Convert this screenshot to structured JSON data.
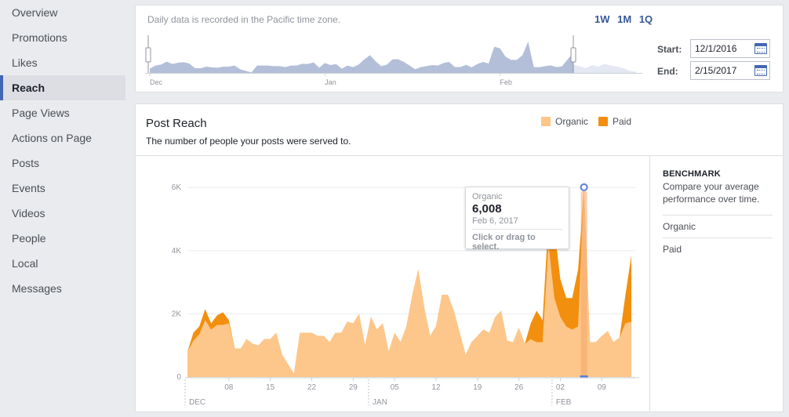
{
  "sidebar": {
    "items": [
      {
        "label": "Overview"
      },
      {
        "label": "Promotions"
      },
      {
        "label": "Likes"
      },
      {
        "label": "Reach",
        "active": true
      },
      {
        "label": "Page Views"
      },
      {
        "label": "Actions on Page"
      },
      {
        "label": "Posts"
      },
      {
        "label": "Events"
      },
      {
        "label": "Videos"
      },
      {
        "label": "People"
      },
      {
        "label": "Local"
      },
      {
        "label": "Messages"
      }
    ]
  },
  "range": {
    "note": "Daily data is recorded in the Pacific time zone.",
    "periods": [
      "1W",
      "1M",
      "1Q"
    ],
    "start_label": "Start:",
    "start_value": "12/1/2016",
    "end_label": "End:",
    "end_value": "2/15/2017",
    "month_labels": [
      "Dec",
      "Jan",
      "Feb"
    ]
  },
  "reach": {
    "title": "Post Reach",
    "subtitle": "The number of people your posts were served to."
  },
  "legend": {
    "organic": "Organic",
    "paid": "Paid"
  },
  "tooltip": {
    "series": "Organic",
    "value": "6,008",
    "date": "Feb 6, 2017",
    "hint": "Click or drag to select."
  },
  "benchmark": {
    "title": "BENCHMARK",
    "description": "Compare your average performance over time.",
    "items": [
      "Organic",
      "Paid"
    ]
  },
  "colors": {
    "organic": "#fdc68a",
    "paid": "#f28f0f",
    "accent": "#4267b2",
    "mini_fill": "#b3bfd8",
    "mini_future": "#e3e8f3"
  },
  "chart_data": {
    "type": "area",
    "title": "Post Reach",
    "stacked": true,
    "x_start_date": "2016-12-01",
    "ylim": [
      0,
      6600
    ],
    "yticks": [
      0,
      2000,
      4000,
      6000
    ],
    "ytick_labels": [
      "0",
      "2K",
      "4K",
      "6K"
    ],
    "xtick_labels": [
      "08",
      "15",
      "22",
      "29",
      "05",
      "12",
      "19",
      "26",
      "02",
      "09"
    ],
    "xtick_day_index": [
      7,
      14,
      21,
      28,
      35,
      42,
      49,
      56,
      63,
      70
    ],
    "month_labels": [
      "DEC",
      "JAN",
      "FEB"
    ],
    "month_day_index": [
      0,
      31,
      62
    ],
    "highlight_day_index": 67,
    "series": [
      {
        "name": "Organic",
        "values": [
          800,
          1150,
          1350,
          1800,
          1500,
          1650,
          1650,
          1700,
          900,
          900,
          1200,
          1050,
          1000,
          1200,
          1200,
          1400,
          700,
          400,
          100,
          1400,
          1400,
          1400,
          1300,
          1300,
          1100,
          1400,
          1400,
          1750,
          1700,
          2000,
          1000,
          1900,
          1500,
          1700,
          800,
          1400,
          1100,
          1600,
          2600,
          3400,
          2200,
          1300,
          1600,
          2600,
          2600,
          2100,
          1400,
          700,
          1100,
          1300,
          1500,
          1400,
          1900,
          2100,
          1150,
          1100,
          1550,
          1050,
          1200,
          1100,
          1100,
          4200,
          2500,
          1900,
          1600,
          1500,
          1600,
          6008,
          1100,
          1100,
          1300,
          1450,
          1100,
          1250,
          1700,
          1750
        ]
      },
      {
        "name": "Paid",
        "values": [
          0,
          250,
          250,
          350,
          200,
          300,
          400,
          100,
          0,
          0,
          0,
          0,
          0,
          0,
          0,
          0,
          0,
          0,
          0,
          0,
          0,
          0,
          0,
          0,
          0,
          0,
          0,
          0,
          0,
          0,
          0,
          0,
          0,
          0,
          0,
          0,
          0,
          0,
          0,
          0,
          0,
          0,
          0,
          0,
          0,
          0,
          0,
          0,
          0,
          0,
          0,
          0,
          0,
          0,
          0,
          0,
          0,
          0,
          500,
          1000,
          700,
          800,
          2200,
          1200,
          900,
          1000,
          1800,
          0,
          0,
          0,
          0,
          0,
          0,
          0,
          900,
          2100
        ]
      }
    ]
  }
}
